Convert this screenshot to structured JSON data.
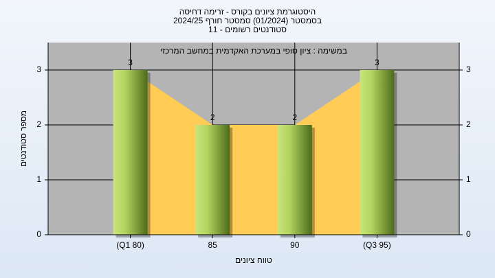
{
  "chart_data": {
    "type": "bar",
    "title": [
      "היסטוגרמת ציונים בקורס - זרימה דחיסה",
      "בסמסטר (01/2024) סמסטר חורף 2024/25",
      "סטודנטים רשומים - 11"
    ],
    "annotation": "במשימה : ציון סופי במערכת האקדמית במחשב המרכזי",
    "x_label": "טווח ציונים",
    "y_label": "מספר סטודנטים",
    "categories": [
      "(Q1 80)",
      "85",
      "90",
      "(Q3 95)"
    ],
    "values": [
      3,
      2,
      2,
      3
    ],
    "color": "#7fa83a",
    "area_color": "#ffcc55",
    "plot_background": "#b4b4b4",
    "ylim": [
      0,
      3.5
    ],
    "yticks": [
      0,
      1,
      2,
      3
    ],
    "grid": true,
    "right_axis": true
  }
}
